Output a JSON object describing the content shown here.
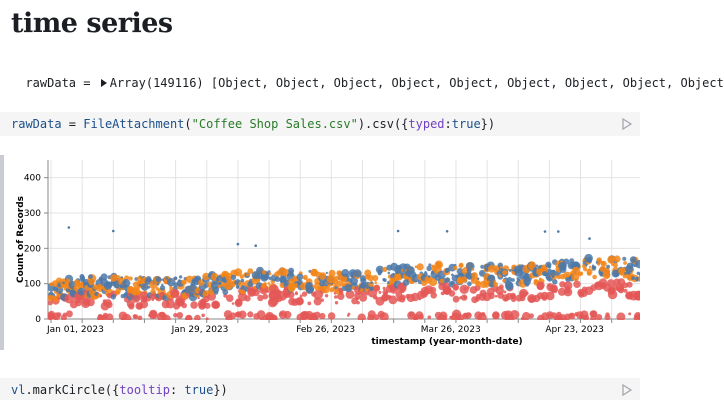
{
  "page": {
    "title": "time series"
  },
  "output": {
    "var_name": "rawData",
    "equals": " = ",
    "value": "Array(149116) [Object, Object, Object, Object, Object, Object, Object, Object, Object"
  },
  "cell1": {
    "var_name": "rawData",
    "op": " = ",
    "fn": "FileAttachment",
    "open": "(",
    "arg": "\"Coffee Shop Sales.csv\"",
    "mid": ").csv({",
    "key": "typed",
    "colon": ":",
    "val": "true",
    "close": "})"
  },
  "cell2": {
    "obj": "vl",
    "method": ".markCircle({",
    "key": "tooltip",
    "colon": ": ",
    "val": "true",
    "close": "})"
  },
  "chart_data": {
    "type": "scatter",
    "xlabel": "timestamp (year-month-date)",
    "ylabel": "Count of Records",
    "ylim": [
      0,
      450
    ],
    "y_ticks": [
      0,
      100,
      200,
      300,
      400
    ],
    "x_ticks": [
      "Jan 01, 2023",
      "Jan 29, 2023",
      "Feb 26, 2023",
      "Mar 26, 2023",
      "Apr 23, 2023"
    ],
    "grid": true,
    "colors": {
      "blue": "#4c78a8",
      "orange": "#f58518",
      "red": "#e45756"
    }
  }
}
